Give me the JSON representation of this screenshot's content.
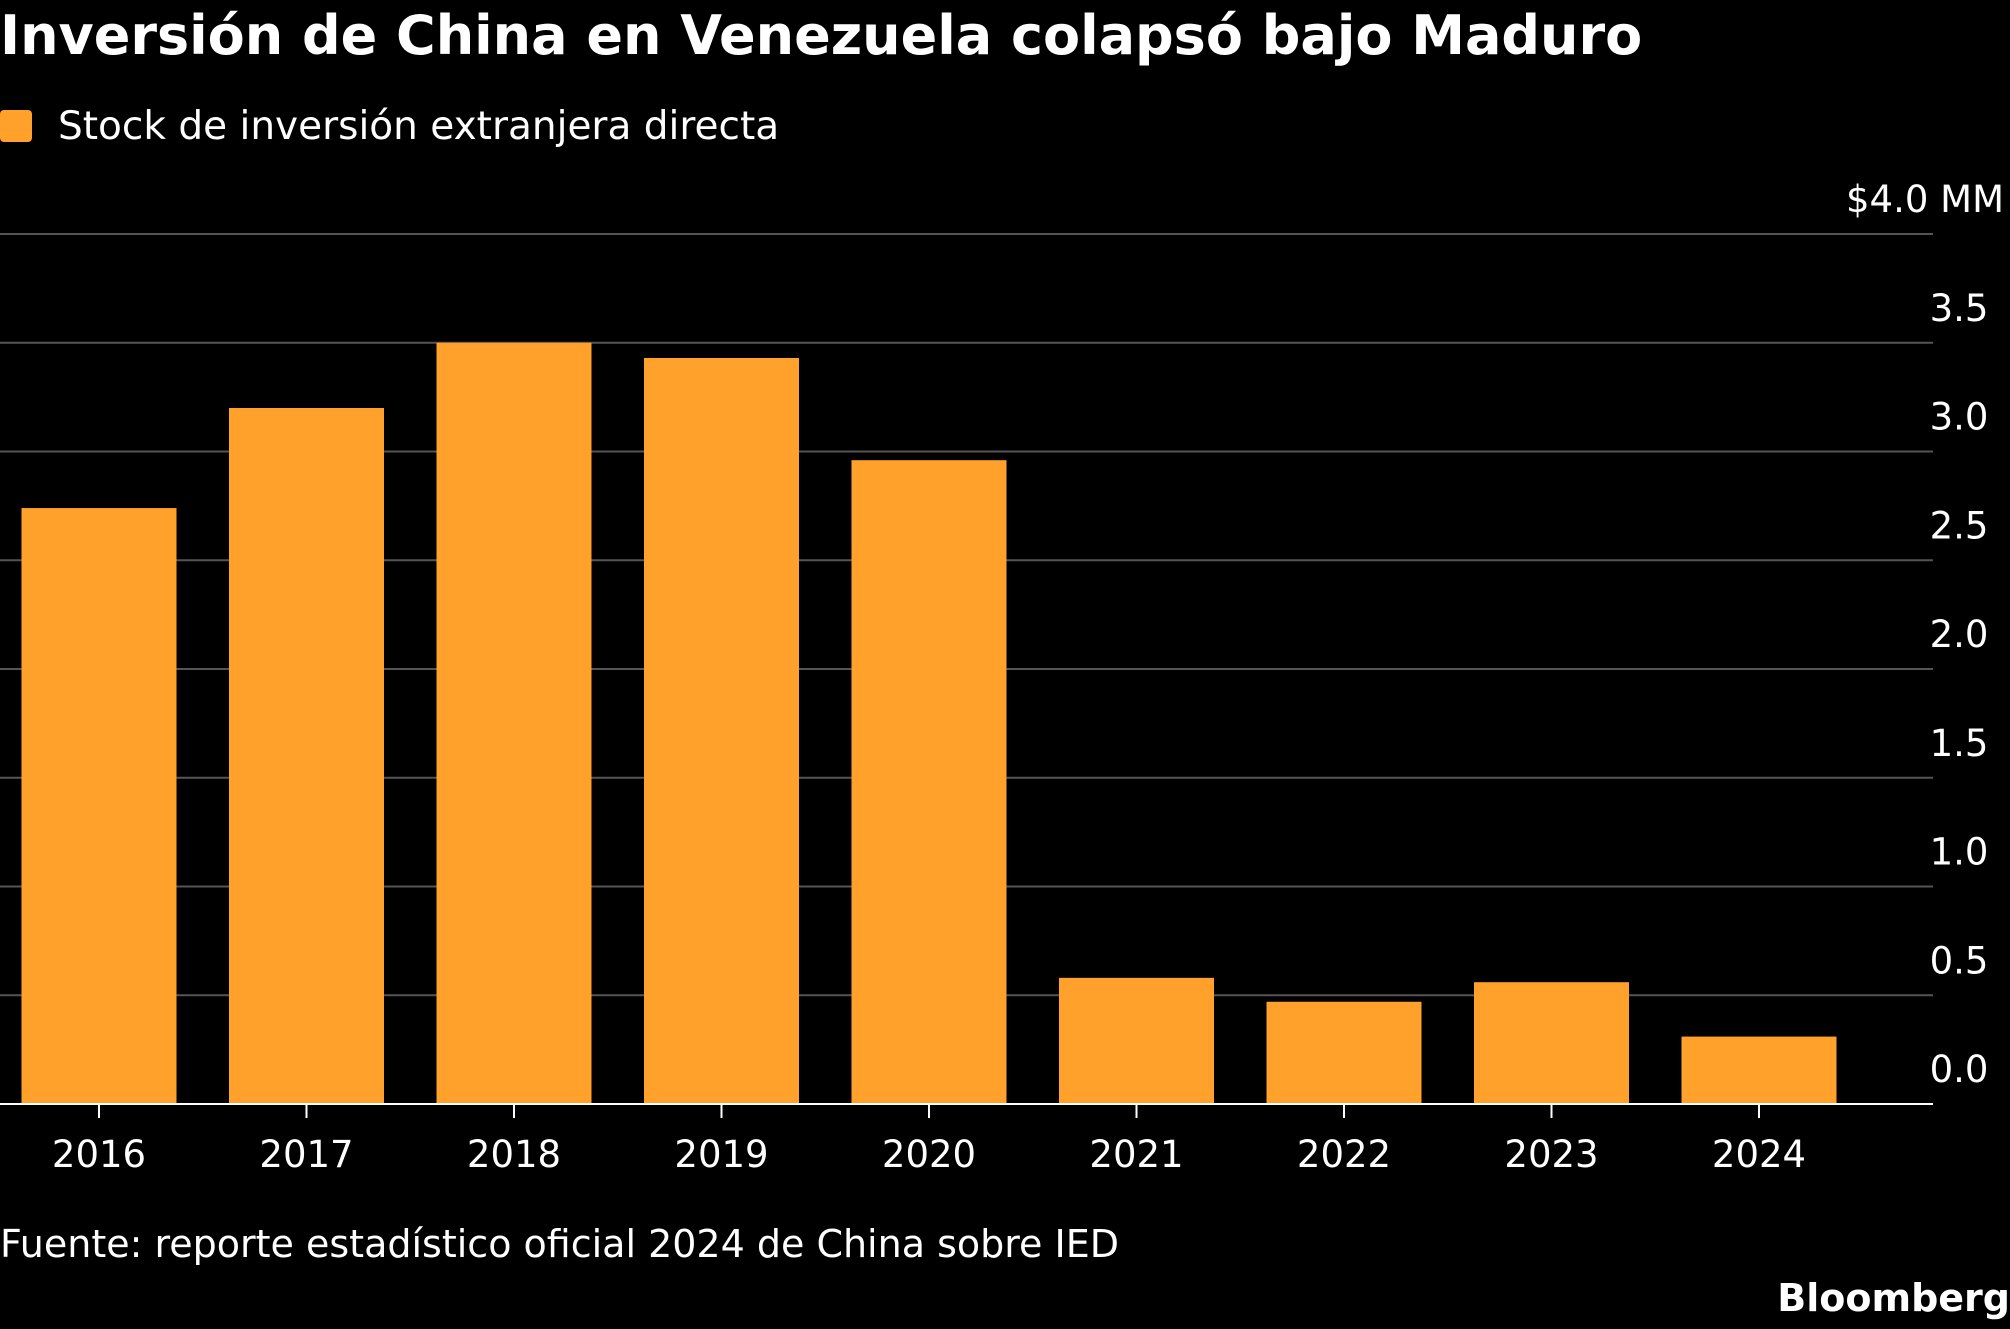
{
  "title": "Inversión de China en Venezuela colapsó bajo Maduro",
  "legend": {
    "label": "Stock de inversión extranjera directa"
  },
  "source": "Fuente: reporte estadístico oficial 2024 de China sobre IED",
  "brand": "Bloomberg",
  "colors": {
    "background": "#000000",
    "bar": "#FFA12B",
    "grid": "#555555",
    "text": "#ffffff"
  },
  "chart_data": {
    "type": "bar",
    "title": "Inversión de China en Venezuela colapsó bajo Maduro",
    "categories": [
      "2016",
      "2017",
      "2018",
      "2019",
      "2020",
      "2021",
      "2022",
      "2023",
      "2024"
    ],
    "series": [
      {
        "name": "Stock de inversión extranjera directa",
        "values": [
          2.74,
          3.2,
          3.5,
          3.43,
          2.96,
          0.58,
          0.47,
          0.56,
          0.31
        ]
      }
    ],
    "ylim": [
      0,
      4
    ],
    "yticks": [
      {
        "value": 0,
        "label": "0.0"
      },
      {
        "value": 0.5,
        "label": "0.5"
      },
      {
        "value": 1,
        "label": "1.0"
      },
      {
        "value": 1.5,
        "label": "1.5"
      },
      {
        "value": 2,
        "label": "2.0"
      },
      {
        "value": 2.5,
        "label": "2.5"
      },
      {
        "value": 3,
        "label": "3.0"
      },
      {
        "value": 3.5,
        "label": "3.5"
      },
      {
        "value": 4,
        "label": "$4.0 MM"
      }
    ],
    "axis_side": "right",
    "grid": true,
    "legend_position": "top-left"
  }
}
